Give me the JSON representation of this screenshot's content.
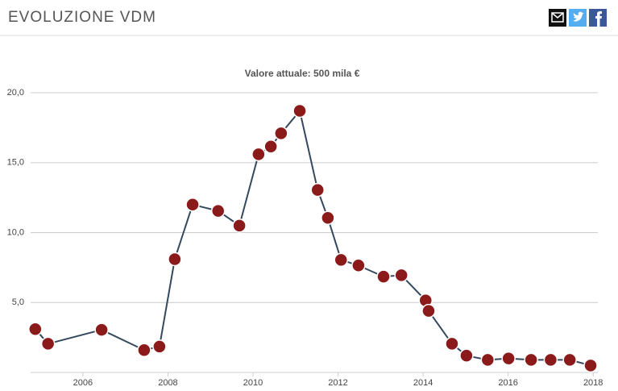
{
  "header": {
    "title": "EVOLUZIONE VDM"
  },
  "chart_data": {
    "type": "line",
    "subtitle": "Valore attuale: 500 mila €",
    "x": [
      2004.88,
      2005.18,
      2006.44,
      2007.44,
      2007.8,
      2008.16,
      2008.58,
      2009.18,
      2009.68,
      2010.13,
      2010.42,
      2010.66,
      2011.1,
      2011.52,
      2011.76,
      2012.07,
      2012.48,
      2013.07,
      2013.49,
      2014.06,
      2014.13,
      2014.68,
      2015.02,
      2015.52,
      2016.01,
      2016.54,
      2017.0,
      2017.45,
      2017.94
    ],
    "values": [
      3.1,
      2.05,
      3.05,
      1.6,
      1.85,
      8.1,
      12.0,
      11.55,
      10.5,
      15.6,
      16.15,
      17.1,
      18.7,
      13.05,
      11.05,
      8.05,
      7.65,
      6.85,
      6.95,
      5.15,
      4.4,
      2.05,
      1.2,
      0.9,
      1.0,
      0.9,
      0.9,
      0.9,
      0.5
    ],
    "color": "#34495e",
    "marker_color": "#8b1a1a",
    "xlim": [
      2004.77,
      2018.11
    ],
    "xticks": [
      2006,
      2008,
      2010,
      2012,
      2014,
      2016,
      2018
    ],
    "ylim": [
      0,
      20
    ],
    "yticks": [
      {
        "value": 5,
        "label": "5,0"
      },
      {
        "value": 10,
        "label": "10,0"
      },
      {
        "value": 15,
        "label": "15,0"
      },
      {
        "value": 20,
        "label": "20,0"
      }
    ],
    "grid": true
  }
}
